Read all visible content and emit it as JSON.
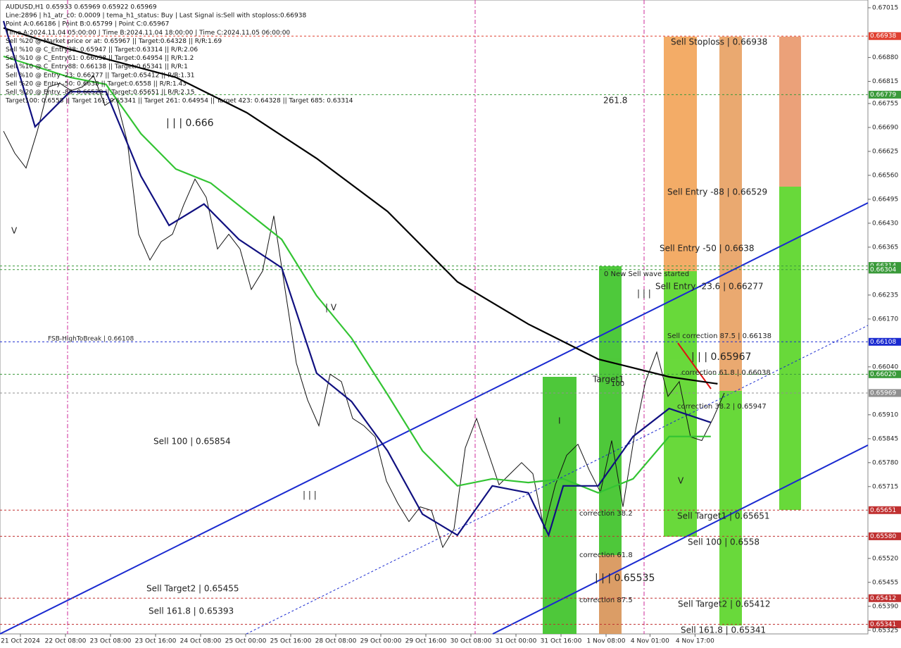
{
  "chart_data": {
    "type": "line",
    "header": [
      "AUDUSD,H1  0.65933 0.65969 0.65922 0.65969",
      "Line:2896 | h1_atr_c0: 0.0009 | tema_h1_status: Buy | Last Signal is:Sell with stoploss:0.66938",
      "Point A:0.66186 | Point B:0.65799 | Point C:0.65967",
      "Time A:2024.11.04 05:00:00 | Time B:2024.11.04 18:00:00 | Time C:2024.11.05 06:00:00",
      "Sell %20 @ Market price or at: 0.65967 || Target:0.64328 || R/R:1.69",
      "Sell %10 @ C_Entry38: 0.65947 || Target:0.63314 || R/R:2.06",
      "Sell %10 @ C_Entry61: 0.66038 || Target:0.64954 || R/R:1.2",
      "Sell %10 @ C_Entry88: 0.66138 || Target:0.65341 || R/R:1",
      "Sell %10 @ Entry -23: 0.66277 || Target:0.65412 || R/R:1.31",
      "Sell %20 @ Entry -50: 0.6638 || Target:0.6558 || R/R:1.43",
      "Sell %20 @ Entry -88: 0.66529 || Target:0.65651 || R/R:2.15",
      "Target100: 0.6558 || Target 161: 0.65341 || Target 261: 0.64954 || Target 423: 0.64328 || Target 685: 0.63314"
    ],
    "xlim": [
      -0.3125,
      76.75
    ],
    "ylim": [
      0.65315,
      0.67036
    ],
    "xticks": [
      {
        "value": 1.5,
        "label": "21 Oct 2024"
      },
      {
        "value": 5.5,
        "label": "22 Oct 08:00"
      },
      {
        "value": 9.5,
        "label": "23 Oct 08:00"
      },
      {
        "value": 13.5,
        "label": "23 Oct 16:00"
      },
      {
        "value": 17.5,
        "label": "24 Oct 08:00"
      },
      {
        "value": 21.5,
        "label": "25 Oct 00:00"
      },
      {
        "value": 25.5,
        "label": "25 Oct 16:00"
      },
      {
        "value": 29.5,
        "label": "28 Oct 08:00"
      },
      {
        "value": 33.5,
        "label": "29 Oct 00:00"
      },
      {
        "value": 37.5,
        "label": "29 Oct 16:00"
      },
      {
        "value": 41.5,
        "label": "30 Oct 08:00"
      },
      {
        "value": 45.5,
        "label": "31 Oct 00:00"
      },
      {
        "value": 49.5,
        "label": "31 Oct 16:00"
      },
      {
        "value": 53.5,
        "label": "1 Nov 08:00"
      },
      {
        "value": 57.4,
        "label": "4 Nov 01:00"
      },
      {
        "value": 61.4,
        "label": "4 Nov 17:00"
      }
    ],
    "yticks": [
      0.67015,
      {
        "value": 0.6688,
        "label": "0.66880"
      },
      0.66815,
      0.66755,
      {
        "value": 0.6669,
        "label": "0.66690"
      },
      0.66625,
      {
        "value": 0.6656,
        "label": "0.66560"
      },
      0.66495,
      {
        "value": 0.6643,
        "label": "0.66430"
      },
      0.66365,
      0.66235,
      {
        "value": 0.6617,
        "label": "0.66170"
      },
      {
        "value": 0.6604,
        "label": "0.66040"
      },
      {
        "value": 0.6591,
        "label": "0.65910"
      },
      0.65845,
      {
        "value": 0.6578,
        "label": "0.65780"
      },
      0.65715,
      {
        "value": 0.6552,
        "label": "0.65520"
      },
      0.65455,
      {
        "value": 0.6539,
        "label": "0.65390"
      },
      0.65325
    ],
    "price_levels": [
      {
        "value": 0.66938,
        "color": "#e04030"
      },
      {
        "value": 0.66779,
        "color": "#3a9a3a"
      },
      {
        "value": 0.66314,
        "color": "#3a9a3a"
      },
      {
        "value": 0.66304,
        "color": "#3a9a3a"
      },
      {
        "value": 0.66108,
        "color": "#1a2ad0"
      },
      {
        "value": {
          "value": 0.6602,
          "label": "0.66020"
        },
        "color": "#3a9a3a"
      },
      {
        "value": 0.65969,
        "color": "#909090"
      },
      {
        "value": 0.65651,
        "color": "#c03030"
      },
      {
        "value": {
          "value": 0.6558,
          "label": "0.65580"
        },
        "color": "#c03030"
      },
      {
        "value": 0.65412,
        "color": "#c03030"
      },
      {
        "value": 0.65341,
        "color": "#c03030"
      }
    ],
    "series": [
      {
        "color": "#111111",
        "x": [
          0,
          1,
          2,
          3,
          4,
          5,
          6,
          7,
          8,
          9,
          10,
          11,
          12,
          13,
          14,
          15,
          16,
          17,
          18,
          19,
          20,
          21,
          22,
          23,
          24,
          25,
          26,
          27,
          28,
          29,
          30,
          31,
          32,
          33,
          34,
          35,
          36,
          37,
          38,
          39,
          40,
          41,
          42,
          43,
          44,
          45,
          46,
          47,
          48,
          49,
          50,
          51,
          52,
          53,
          54,
          55,
          56,
          57,
          58,
          59,
          60,
          61,
          62,
          63,
          64
        ],
        "values": [
          0.6668,
          0.6662,
          0.6658,
          0.6668,
          0.668,
          0.6681,
          0.6679,
          0.668,
          0.6683,
          0.6675,
          0.6677,
          0.6665,
          0.664,
          0.6633,
          0.6638,
          0.664,
          0.6648,
          0.6655,
          0.665,
          0.6636,
          0.664,
          0.6636,
          0.6625,
          0.663,
          0.6645,
          0.6625,
          0.6605,
          0.6595,
          0.6588,
          0.6602,
          0.66,
          0.659,
          0.6588,
          0.6585,
          0.6573,
          0.6567,
          0.6562,
          0.6566,
          0.6565,
          0.6555,
          0.656,
          0.6582,
          0.659,
          0.6581,
          0.6572,
          0.6575,
          0.6578,
          0.6575,
          0.656,
          0.6572,
          0.658,
          0.6583,
          0.6576,
          0.657,
          0.6584,
          0.6566,
          0.6585,
          0.66,
          0.6608,
          0.6596,
          0.66,
          0.6585,
          0.6584,
          0.659,
          0.65969
        ]
      },
      {
        "color": "#000000",
        "x": [
          0,
          5.9,
          15.3,
          21.6,
          27.8,
          34.1,
          40.3,
          46.6,
          52.8,
          59.1,
          63.4
        ],
        "values": [
          0.6696,
          0.66902,
          0.66826,
          0.6673,
          0.66606,
          0.66462,
          0.66271,
          0.66156,
          0.66061,
          0.66013,
          0.65994
        ]
      },
      {
        "color": "#33c433",
        "x": [
          0,
          5.9,
          9.1,
          12.2,
          15.3,
          18.4,
          24.7,
          27.8,
          30.9,
          34.1,
          37.2,
          40.3,
          43.4,
          46.6,
          49.7,
          52.8,
          55.9,
          59.1,
          62.8
        ],
        "values": [
          0.66883,
          0.66826,
          0.66807,
          0.66673,
          0.66577,
          0.66539,
          0.66386,
          0.66233,
          0.66118,
          0.65965,
          0.65812,
          0.65717,
          0.65736,
          0.65726,
          0.65736,
          0.65698,
          0.65736,
          0.65851,
          0.65851
        ]
      },
      {
        "color": "#101080",
        "x": [
          0,
          2.8,
          5.9,
          9.1,
          12.2,
          14.7,
          17.8,
          20.9,
          24.7,
          27.8,
          30.9,
          34.1,
          37.2,
          40.3,
          43.4,
          46.6,
          48.4,
          49.7,
          52.8,
          55.9,
          59.1,
          62.8
        ],
        "values": [
          0.66979,
          0.66692,
          0.66787,
          0.66787,
          0.66558,
          0.66424,
          0.66482,
          0.66386,
          0.66309,
          0.66023,
          0.65946,
          0.65812,
          0.6564,
          0.65583,
          0.65717,
          0.65698,
          0.65583,
          0.65717,
          0.65717,
          0.65851,
          0.65927,
          0.65889
        ]
      }
    ],
    "annotations": [
      "Sell Stoploss | 0.66938",
      "261.8",
      "| | | 0.666",
      "Sell Entry -88 | 0.66529",
      "Sell Entry -50 | 0.6638",
      "0 New Sell wave started",
      "Sell Entry -23.6 | 0.66277",
      "| | |",
      "Sell correction 87.5 | 0.66138",
      "| | | 0.65967",
      "correction 61.8 | 0.66038",
      "Target1",
      "100",
      "correction 38.2 | 0.65947",
      "Sell 100 | 0.65854",
      "FSB-HighToBreak | 0.66108",
      "| | |",
      "| V",
      "V",
      "I",
      "correction 38.2",
      "correction 61.8",
      "| | | 0.65535",
      "correction 87.5",
      "Sell Target1 | 0.65651",
      "Sell 100 | 0.6558",
      "Sell Target2 | 0.65455",
      "Sell 161.8 | 0.65393",
      "Sell Target2 | 0.65412",
      "Sell 161.8 | 0.65341",
      "V"
    ]
  }
}
